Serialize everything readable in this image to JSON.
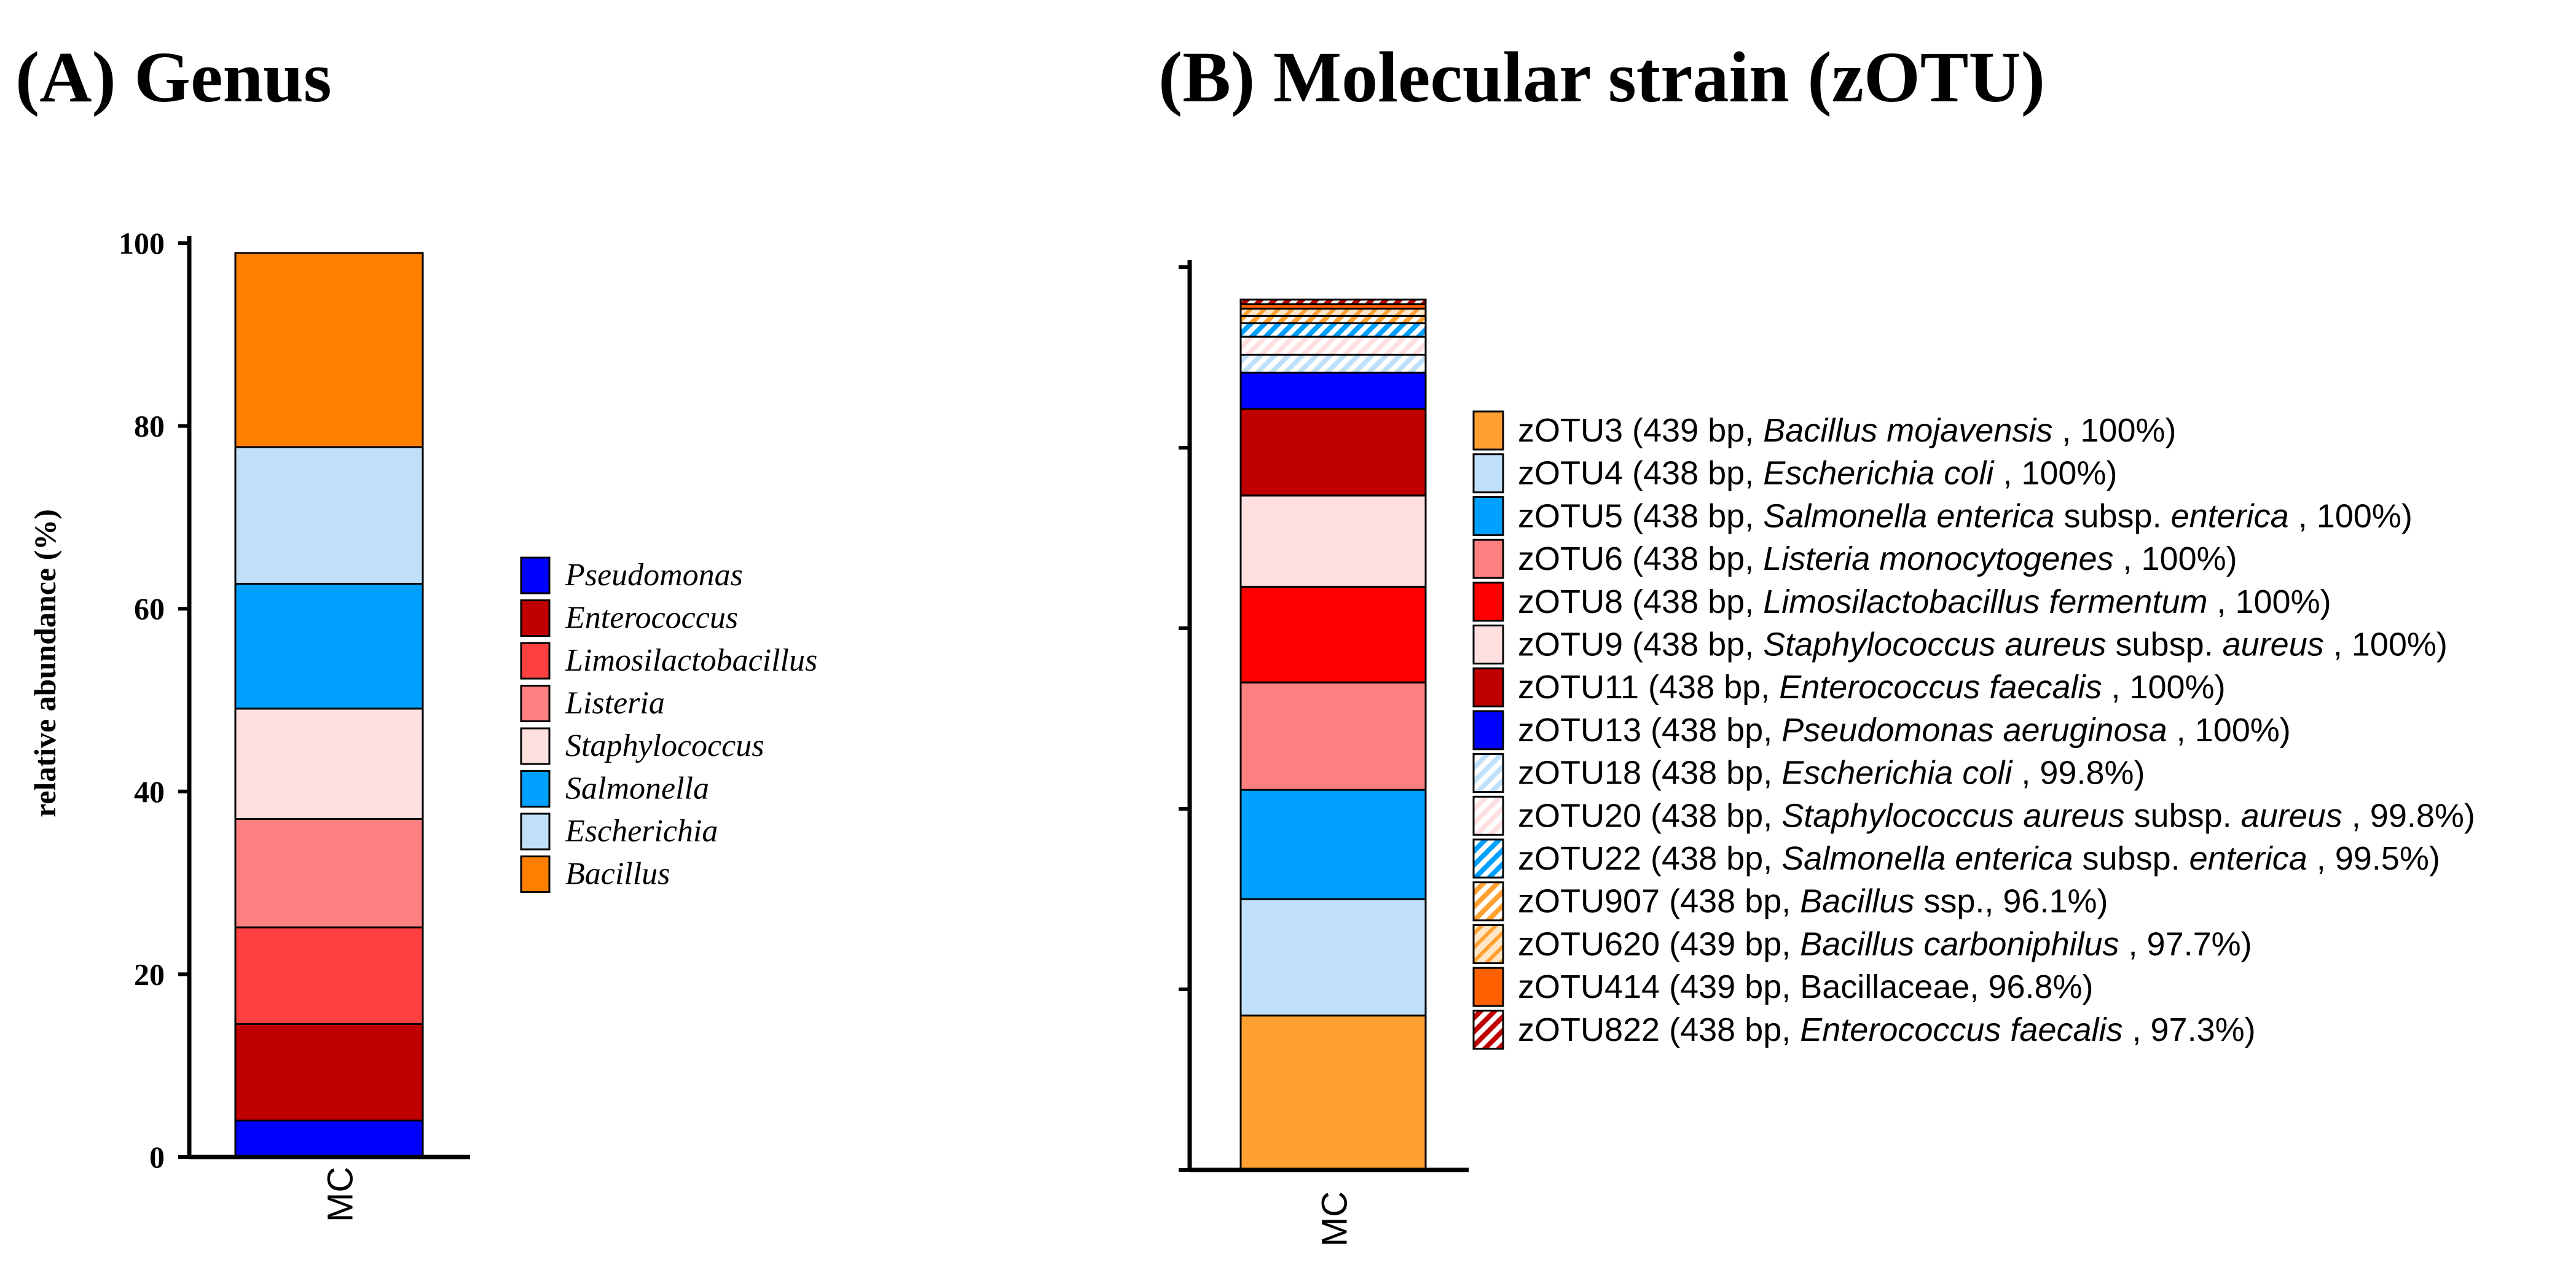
{
  "colors": {
    "blue": "#0000ff",
    "darkred": "#c00000",
    "red": "#ff0000",
    "redA": "#ff4040",
    "salmon": "#ff8080",
    "pink": "#ffe0e0",
    "azure": "#00a0ff",
    "lightblue": "#c0e0fa",
    "orangeA": "#ff8000",
    "orangeB": "#ffa030",
    "darkorange": "#ff6000"
  },
  "chart_data": [
    {
      "type": "bar",
      "stacked": true,
      "title": "(A) Genus",
      "ylabel": "relative abundance (%)",
      "categories": [
        "MC"
      ],
      "ylim": [
        0,
        100
      ],
      "yticks": [
        "0",
        "20",
        "40",
        "60",
        "80",
        "100"
      ],
      "legend_position": "right",
      "series": [
        {
          "name": "Pseudomonas",
          "values": [
            4.0
          ],
          "color": "blue"
        },
        {
          "name": "Enterococcus",
          "values": [
            10.6
          ],
          "color": "darkred"
        },
        {
          "name": "Limosilactobacillus",
          "values": [
            10.6
          ],
          "color": "redA"
        },
        {
          "name": "Listeria",
          "values": [
            11.9
          ],
          "color": "salmon"
        },
        {
          "name": "Staphylococcus",
          "values": [
            12.1
          ],
          "color": "pink"
        },
        {
          "name": "Salmonella",
          "values": [
            13.7
          ],
          "color": "azure"
        },
        {
          "name": "Escherichia",
          "values": [
            15.0
          ],
          "color": "lightblue"
        },
        {
          "name": "Bacillus",
          "values": [
            21.3
          ],
          "color": "orangeA"
        }
      ]
    },
    {
      "type": "bar",
      "stacked": true,
      "title": "(B) Molecular strain (zOTU)",
      "categories": [
        "MC"
      ],
      "ylim": [
        0,
        100
      ],
      "yticks": [
        "",
        "",
        "",
        "",
        "",
        ""
      ],
      "legend_position": "right",
      "series": [
        {
          "name": "zOTU3",
          "values": [
            17.1
          ],
          "color": "orangeB",
          "pattern": "solid",
          "label": {
            "pre": "zOTU3 (439 bp, ",
            "italic": "Bacillus mojavensis",
            "post": " , 100%)"
          }
        },
        {
          "name": "zOTU4",
          "values": [
            12.9
          ],
          "color": "lightblue",
          "pattern": "solid",
          "label": {
            "pre": "zOTU4 (438 bp, ",
            "italic": "Escherichia coli",
            "post": " , 100%)"
          }
        },
        {
          "name": "zOTU5",
          "values": [
            12.1
          ],
          "color": "azure",
          "pattern": "solid",
          "label": {
            "pre": "zOTU5 (438 bp, ",
            "italic": "Salmonella enterica",
            "mid": " subsp. ",
            "italic2": "enterica",
            "post": " , 100%)"
          }
        },
        {
          "name": "zOTU6",
          "values": [
            11.9
          ],
          "color": "salmon",
          "pattern": "solid",
          "label": {
            "pre": "zOTU6 (438 bp, ",
            "italic": "Listeria monocytogenes",
            "post": " , 100%)"
          }
        },
        {
          "name": "zOTU8",
          "values": [
            10.6
          ],
          "color": "red",
          "pattern": "solid",
          "label": {
            "pre": "zOTU8 (438 bp, ",
            "italic": "Limosilactobacillus fermentum",
            "post": " , 100%)"
          }
        },
        {
          "name": "zOTU9",
          "values": [
            10.1
          ],
          "color": "pink",
          "pattern": "solid",
          "label": {
            "pre": "zOTU9 (438 bp, ",
            "italic": "Staphylococcus aureus",
            "mid": " subsp. ",
            "italic2": "aureus",
            "post": " , 100%)"
          }
        },
        {
          "name": "zOTU11",
          "values": [
            9.6
          ],
          "color": "darkred",
          "pattern": "solid",
          "label": {
            "pre": "zOTU11 (438 bp, ",
            "italic": "Enterococcus faecalis",
            "post": " , 100%)"
          }
        },
        {
          "name": "zOTU13",
          "values": [
            4.0
          ],
          "color": "blue",
          "pattern": "solid",
          "label": {
            "pre": "zOTU13 (438 bp, ",
            "italic": "Pseudomonas aeruginosa",
            "post": " , 100%)"
          }
        },
        {
          "name": "zOTU18",
          "values": [
            2.0
          ],
          "color": "lightblue",
          "pattern": "hatch",
          "label": {
            "pre": "zOTU18 (438 bp, ",
            "italic": "Escherichia coli",
            "post": " , 99.8%)"
          }
        },
        {
          "name": "zOTU20",
          "values": [
            2.0
          ],
          "color": "pink",
          "pattern": "hatch",
          "label": {
            "pre": "zOTU20 (438 bp, ",
            "italic": "Staphylococcus aureus",
            "mid": " subsp. ",
            "italic2": "aureus",
            "post": " , 99.8%)"
          }
        },
        {
          "name": "zOTU22",
          "values": [
            1.5
          ],
          "color": "azure",
          "pattern": "hatch",
          "label": {
            "pre": "zOTU22 (438 bp, ",
            "italic": "Salmonella enterica",
            "mid": " subsp. ",
            "italic2": "enterica",
            "post": " , 99.5%)"
          }
        },
        {
          "name": "zOTU907",
          "values": [
            0.8
          ],
          "color": "orangeB",
          "pattern": "hatch",
          "label": {
            "pre": "zOTU907 (438 bp, ",
            "italic": "Bacillus",
            "post": " ssp., 96.1%)"
          }
        },
        {
          "name": "zOTU620",
          "values": [
            0.8
          ],
          "color": "orangeB",
          "pattern": "hatch-light",
          "label": {
            "pre": "zOTU620 (439 bp, ",
            "italic": "Bacillus carboniphilus",
            "post": " , 97.7%)"
          }
        },
        {
          "name": "zOTU414",
          "values": [
            0.5
          ],
          "color": "darkorange",
          "pattern": "solid",
          "label": {
            "pre": "zOTU414 (439 bp, Bacillaceae, 96.8%)"
          }
        },
        {
          "name": "zOTU822",
          "values": [
            0.5
          ],
          "color": "darkred",
          "pattern": "hatch",
          "label": {
            "pre": "zOTU822 (438 bp, ",
            "italic": "Enterococcus faecalis",
            "post": " , 97.3%)"
          }
        }
      ]
    }
  ]
}
